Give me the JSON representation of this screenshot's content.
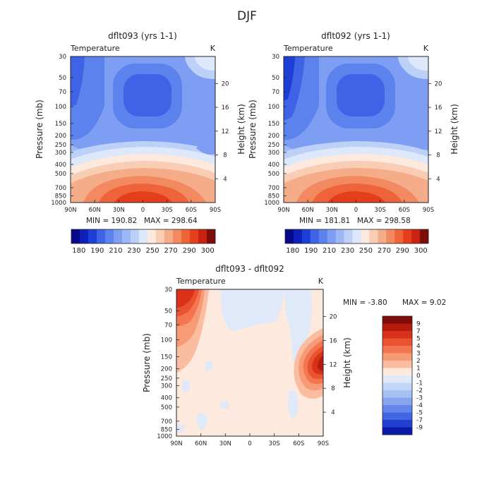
{
  "page": {
    "title": "DJF"
  },
  "chart_data": [
    {
      "type": "heatmap",
      "title": "dflt093 (yrs 1-1)",
      "variable": "Temperature",
      "unit": "K",
      "ylabel": "Pressure (mb)",
      "ylabel_right": "Height (km)",
      "x_ticks": [
        "90N",
        "60N",
        "30N",
        "0",
        "30S",
        "60S",
        "90S"
      ],
      "y_ticks": [
        "30",
        "50",
        "70",
        "100",
        "150",
        "200",
        "250",
        "300",
        "400",
        "500",
        "700",
        "850",
        "1000"
      ],
      "height_ticks": [
        "20",
        "16",
        "12",
        "8",
        "4"
      ],
      "min_label": "MIN = 190.82",
      "max_label": "MAX = 298.64",
      "min": 190.82,
      "max": 298.64,
      "colorbar": {
        "orientation": "horizontal",
        "labels": [
          "180",
          "190",
          "210",
          "230",
          "250",
          "270",
          "290",
          "300"
        ],
        "colors": [
          "#08088a",
          "#0f1fba",
          "#1c3fd8",
          "#3f63e6",
          "#5c82ee",
          "#7d9ef2",
          "#9db8f4",
          "#bdd0f7",
          "#dde8fa",
          "#fde9dd",
          "#f9cdb4",
          "#f5ac88",
          "#f28960",
          "#ee633a",
          "#e53e1c",
          "#c82210",
          "#7e0c08"
        ]
      }
    },
    {
      "type": "heatmap",
      "title": "dflt092 (yrs 1-1)",
      "variable": "Temperature",
      "unit": "K",
      "ylabel": "Pressure (mb)",
      "ylabel_right": "Height (km)",
      "x_ticks": [
        "90N",
        "60N",
        "30N",
        "0",
        "30S",
        "60S",
        "90S"
      ],
      "y_ticks": [
        "30",
        "50",
        "70",
        "100",
        "150",
        "200",
        "250",
        "300",
        "400",
        "500",
        "700",
        "850",
        "1000"
      ],
      "height_ticks": [
        "20",
        "16",
        "12",
        "8",
        "4"
      ],
      "min_label": "MIN = 181.81",
      "max_label": "MAX = 298.58",
      "min": 181.81,
      "max": 298.58,
      "colorbar": {
        "orientation": "horizontal",
        "labels": [
          "180",
          "190",
          "210",
          "230",
          "250",
          "270",
          "290",
          "300"
        ],
        "colors": [
          "#08088a",
          "#0f1fba",
          "#1c3fd8",
          "#3f63e6",
          "#5c82ee",
          "#7d9ef2",
          "#9db8f4",
          "#bdd0f7",
          "#dde8fa",
          "#fde9dd",
          "#f9cdb4",
          "#f5ac88",
          "#f28960",
          "#ee633a",
          "#e53e1c",
          "#c82210",
          "#7e0c08"
        ]
      }
    },
    {
      "type": "heatmap",
      "title": "dflt093 - dflt092",
      "variable": "Temperature",
      "unit": "K",
      "ylabel": "Pressure (mb)",
      "ylabel_right": "Height (km)",
      "x_ticks": [
        "90N",
        "60N",
        "30N",
        "0",
        "30S",
        "60S",
        "90S"
      ],
      "y_ticks": [
        "30",
        "50",
        "70",
        "100",
        "150",
        "200",
        "250",
        "300",
        "400",
        "500",
        "700",
        "850",
        "1000"
      ],
      "height_ticks": [
        "20",
        "16",
        "12",
        "8",
        "4"
      ],
      "min_label": "MIN = -3.80",
      "max_label": "MAX = 9.02",
      "min": -3.8,
      "max": 9.02,
      "colorbar": {
        "orientation": "vertical",
        "labels": [
          "9",
          "7",
          "5",
          "4",
          "3",
          "2",
          "1",
          "0",
          "-1",
          "-2",
          "-3",
          "-4",
          "-5",
          "-7",
          "-9"
        ],
        "colors": [
          "#7e0c08",
          "#b51c0d",
          "#d8331a",
          "#ea5330",
          "#f47650",
          "#f79a76",
          "#fabd9f",
          "#fde9dd",
          "#dfe9fa",
          "#c3d6f8",
          "#a6c0f5",
          "#87a6f0",
          "#6486ea",
          "#4366e3",
          "#233fcf",
          "#0a1aa8"
        ]
      }
    }
  ]
}
